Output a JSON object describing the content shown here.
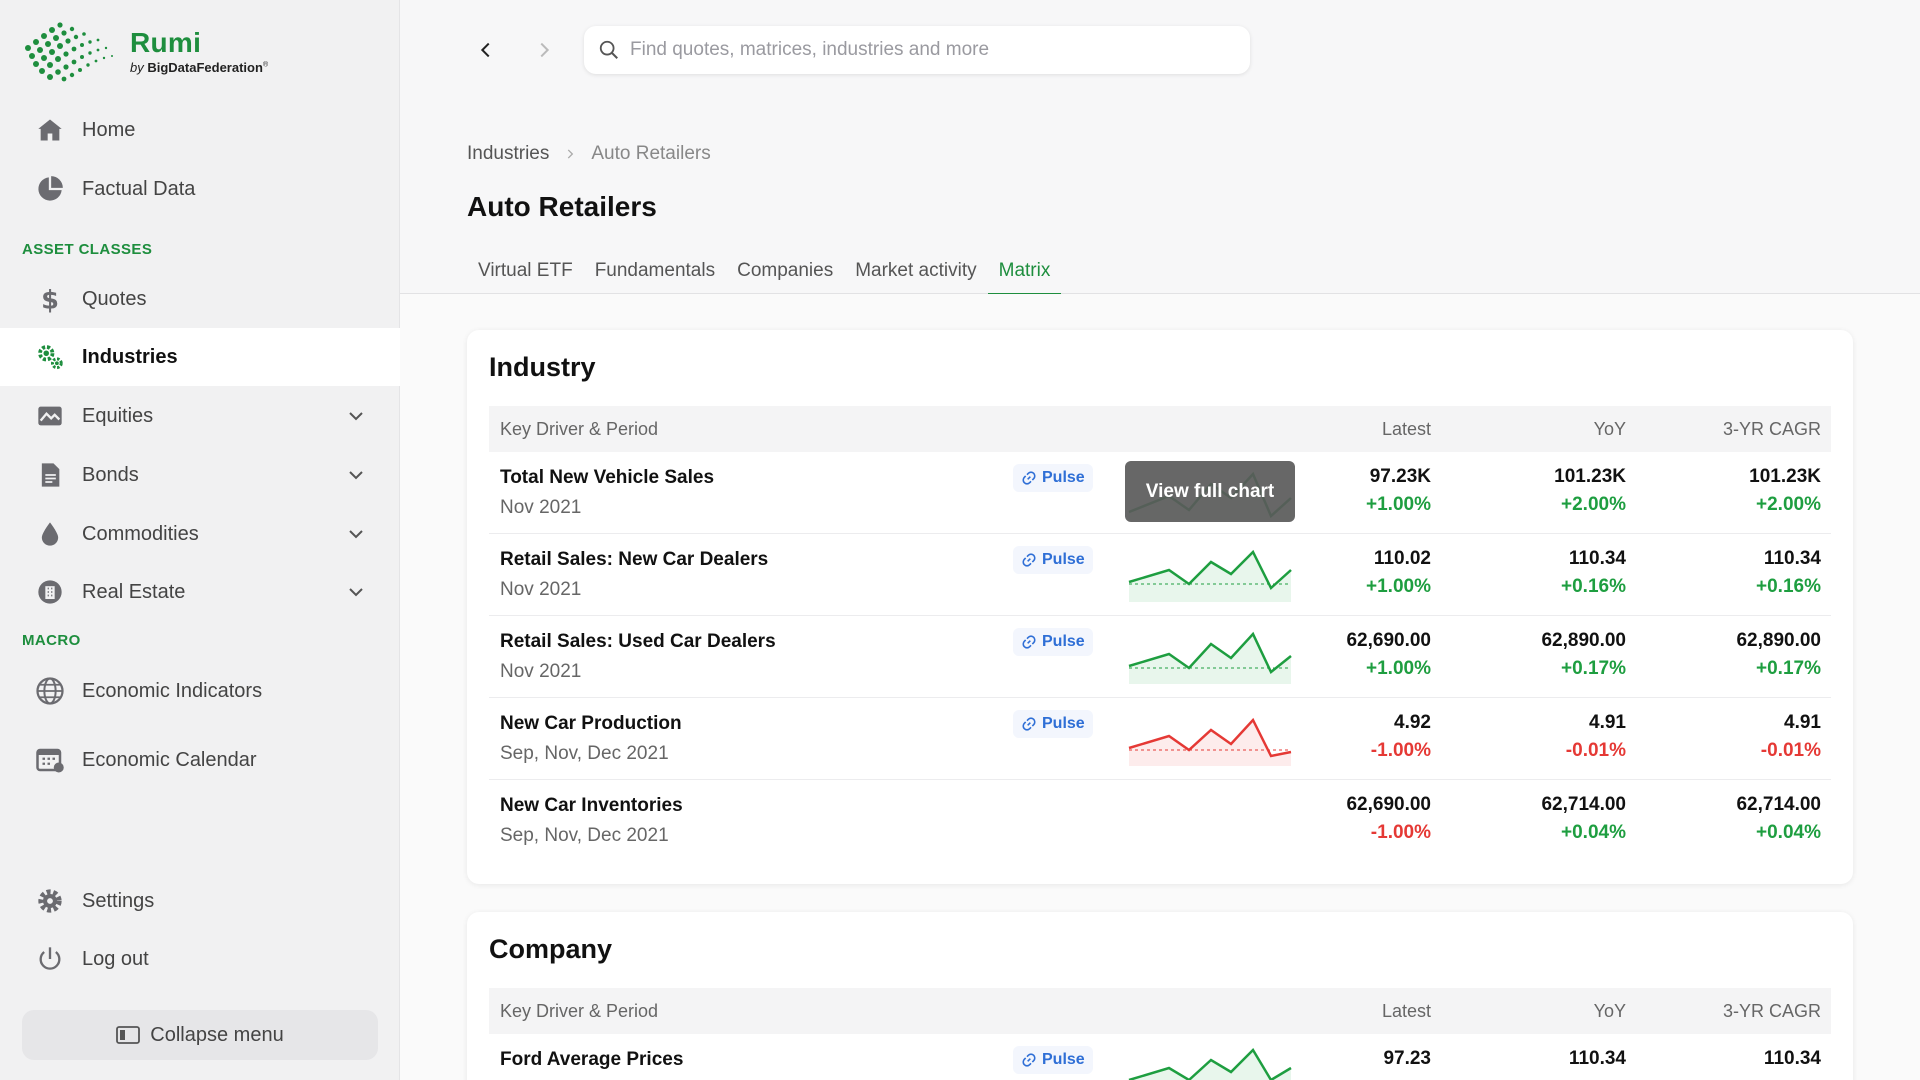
{
  "brand": {
    "name": "Rumi",
    "by_prefix": "by ",
    "by_company": "BigDataFederation",
    "trademark": "®",
    "color": "#1e8e3e"
  },
  "sidebar": {
    "home": "Home",
    "factual": "Factual Data",
    "asset_classes_label": "ASSET CLASSES",
    "quotes": "Quotes",
    "industries": "Industries",
    "equities": "Equities",
    "bonds": "Bonds",
    "commodities": "Commodities",
    "real_estate": "Real Estate",
    "macro_label": "MACRO",
    "economic_indicators": "Economic Indicators",
    "economic_calendar": "Economic Calendar",
    "settings": "Settings",
    "logout": "Log out",
    "collapse": "Collapse menu"
  },
  "search": {
    "placeholder": "Find quotes, matrices, industries and more"
  },
  "breadcrumb": {
    "parent": "Industries",
    "current": "Auto Retailers"
  },
  "page_title": "Auto Retailers",
  "tabs": [
    "Virtual ETF",
    "Fundamentals",
    "Companies",
    "Market activity",
    "Matrix"
  ],
  "table_headers": {
    "key": "Key Driver & Period",
    "latest": "Latest",
    "yoy": "YoY",
    "cagr": "3-YR CAGR"
  },
  "pulse_label": "Pulse",
  "tooltip": "View full chart",
  "industry": {
    "title": "Industry",
    "rows": [
      {
        "name": "Total New Vehicle Sales",
        "period": "Nov 2021",
        "latest": "97.23K",
        "latest_chg": "+1.00%",
        "yoy": "101.23K",
        "yoy_chg": "+2.00%",
        "cagr": "101.23K",
        "cagr_chg": "+2.00%"
      },
      {
        "name": "Retail Sales: New Car Dealers",
        "period": "Nov 2021",
        "latest": "110.02",
        "latest_chg": "+1.00%",
        "yoy": "110.34",
        "yoy_chg": "+0.16%",
        "cagr": "110.34",
        "cagr_chg": "+0.16%"
      },
      {
        "name": "Retail Sales: Used Car Dealers",
        "period": "Nov 2021",
        "latest": "62,690.00",
        "latest_chg": "+1.00%",
        "yoy": "62,890.00",
        "yoy_chg": "+0.17%",
        "cagr": "62,890.00",
        "cagr_chg": "+0.17%"
      },
      {
        "name": "New Car Production",
        "period": "Sep, Nov, Dec 2021",
        "latest": "4.92",
        "latest_chg": "-1.00%",
        "yoy": "4.91",
        "yoy_chg": "-0.01%",
        "cagr": "4.91",
        "cagr_chg": "-0.01%"
      },
      {
        "name": "New Car Inventories",
        "period": "Sep, Nov, Dec 2021",
        "latest": "62,690.00",
        "latest_chg": "-1.00%",
        "yoy": "62,714.00",
        "yoy_chg": "+0.04%",
        "cagr": "62,714.00",
        "cagr_chg": "+0.04%"
      }
    ]
  },
  "company": {
    "title": "Company",
    "rows": [
      {
        "name": "Ford Average Prices",
        "latest": "97.23",
        "yoy": "110.34",
        "cagr": "110.34"
      }
    ]
  },
  "colors": {
    "positive": "#1e9e40",
    "negative": "#e53935",
    "pulse": "#2f6fd6"
  }
}
